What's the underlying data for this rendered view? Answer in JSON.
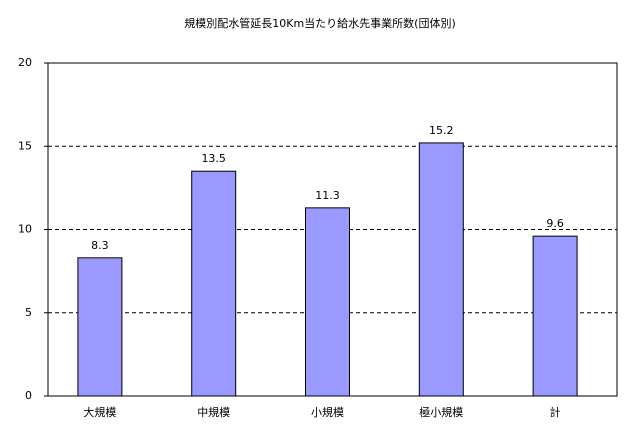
{
  "chart_data": {
    "type": "bar",
    "title": "規模別配水管延長10Km当たり給水先事業所数(団体別)",
    "categories": [
      "大規模",
      "中規模",
      "小規模",
      "極小規模",
      "計"
    ],
    "values": [
      8.3,
      13.5,
      11.3,
      15.2,
      9.6
    ],
    "color": "#9999ff",
    "ylim": [
      0,
      20
    ],
    "yticks": [
      0,
      5,
      10,
      15,
      20
    ],
    "grid": true
  }
}
